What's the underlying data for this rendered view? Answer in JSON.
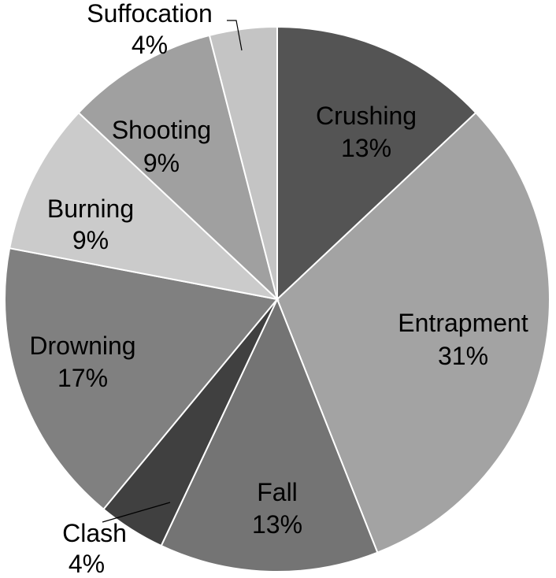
{
  "chart_data": {
    "type": "pie",
    "title": "",
    "slices": [
      {
        "label": "Crushing",
        "value": 13,
        "value_label": "13%",
        "color": "#545454"
      },
      {
        "label": "Entrapment",
        "value": 31,
        "value_label": "31%",
        "color": "#a3a3a3"
      },
      {
        "label": "Fall",
        "value": 13,
        "value_label": "13%",
        "color": "#747474"
      },
      {
        "label": "Clash",
        "value": 4,
        "value_label": "4%",
        "color": "#404040"
      },
      {
        "label": "Drowning",
        "value": 17,
        "value_label": "17%",
        "color": "#808080"
      },
      {
        "label": "Burning",
        "value": 9,
        "value_label": "9%",
        "color": "#cbcbcb"
      },
      {
        "label": "Shooting",
        "value": 9,
        "value_label": "9%",
        "color": "#a0a0a0"
      },
      {
        "label": "Suffocation",
        "value": 4,
        "value_label": "4%",
        "color": "#c4c4c4"
      }
    ],
    "start_angle": "12 o'clock",
    "direction": "clockwise",
    "legend": "none"
  }
}
